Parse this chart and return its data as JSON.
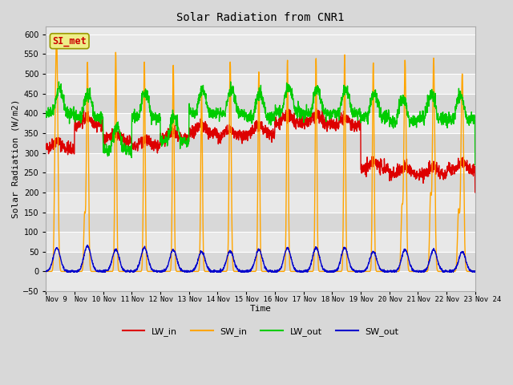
{
  "title": "Solar Radiation from CNR1",
  "xlabel": "Time",
  "ylabel": "Solar Radiation (W/m2)",
  "ylim": [
    -50,
    620
  ],
  "yticks": [
    -50,
    0,
    50,
    100,
    150,
    200,
    250,
    300,
    350,
    400,
    450,
    500,
    550,
    600
  ],
  "xtick_labels": [
    "Nov 9",
    "Nov 10",
    "Nov 11",
    "Nov 12",
    "Nov 13",
    "Nov 14",
    "Nov 15",
    "Nov 16",
    "Nov 17",
    "Nov 18",
    "Nov 19",
    "Nov 20",
    "Nov 21",
    "Nov 22",
    "Nov 23",
    "Nov 24"
  ],
  "legend_labels": [
    "LW_in",
    "SW_in",
    "LW_out",
    "SW_out"
  ],
  "legend_colors": [
    "#dd0000",
    "#ffa500",
    "#00cc00",
    "#0000cc"
  ],
  "annotation_text": "SI_met",
  "annotation_color": "#cc0000",
  "annotation_bg": "#eeee88",
  "line_colors": {
    "LW_in": "#dd0000",
    "SW_in": "#ffa500",
    "LW_out": "#00cc00",
    "SW_out": "#0000cc"
  },
  "background_color": "#d8d8d8",
  "plot_bg_color": "#e8e8e8",
  "grid_color": "#ffffff",
  "band_color_light": "#e8e8e8",
  "band_color_dark": "#d8d8d8",
  "figsize": [
    6.4,
    4.8
  ],
  "dpi": 100
}
